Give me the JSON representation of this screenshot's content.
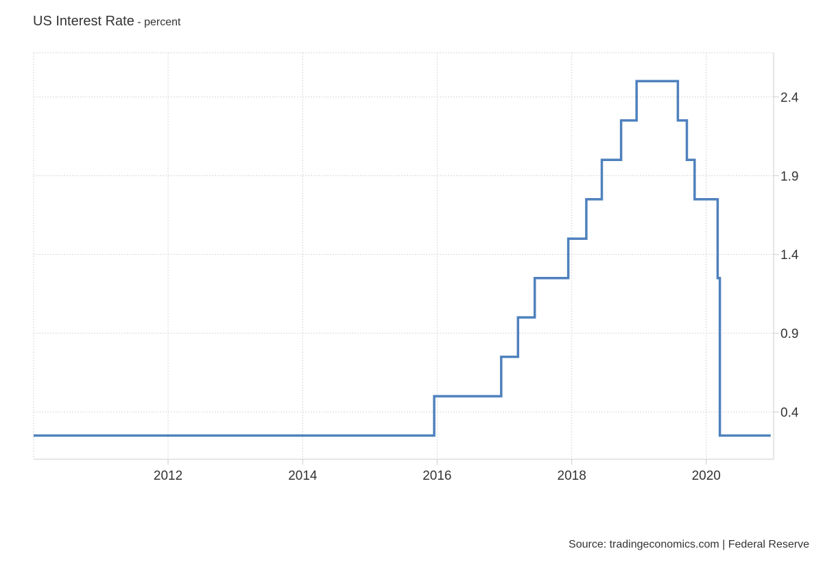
{
  "header": {
    "title": "US Interest Rate",
    "separator": "-",
    "subtitle": "percent"
  },
  "source": "Source: tradingeconomics.com | Federal Reserve",
  "colors": {
    "series": "#4f81bd",
    "grid": "#d6d6d6",
    "axis": "#cccccc",
    "text": "#333333"
  },
  "chart_data": {
    "type": "line",
    "step": true,
    "title": "US Interest Rate",
    "subtitle": "percent",
    "xlabel": "",
    "ylabel": "",
    "x_ticks": [
      "2012",
      "2014",
      "2016",
      "2018",
      "2020"
    ],
    "y_ticks": [
      "0.4",
      "0.9",
      "1.4",
      "1.9",
      "2.4"
    ],
    "xlim": [
      "2010-01-01",
      "2021-01-01"
    ],
    "ylim": [
      0.1,
      2.68
    ],
    "grid": true,
    "legend": "none",
    "series": [
      {
        "x": [
          "2010-01-01",
          "2015-12-16",
          "2016-12-14",
          "2017-03-15",
          "2017-06-14",
          "2017-12-13",
          "2018-03-21",
          "2018-06-13",
          "2018-09-26",
          "2018-12-19",
          "2019-07-31",
          "2019-09-18",
          "2019-10-30",
          "2020-03-03",
          "2020-03-15",
          "2020-12-16"
        ],
        "y": [
          0.25,
          0.5,
          0.75,
          1.0,
          1.25,
          1.5,
          1.75,
          2.0,
          2.25,
          2.5,
          2.25,
          2.0,
          1.75,
          1.25,
          0.25,
          0.25
        ]
      }
    ]
  }
}
